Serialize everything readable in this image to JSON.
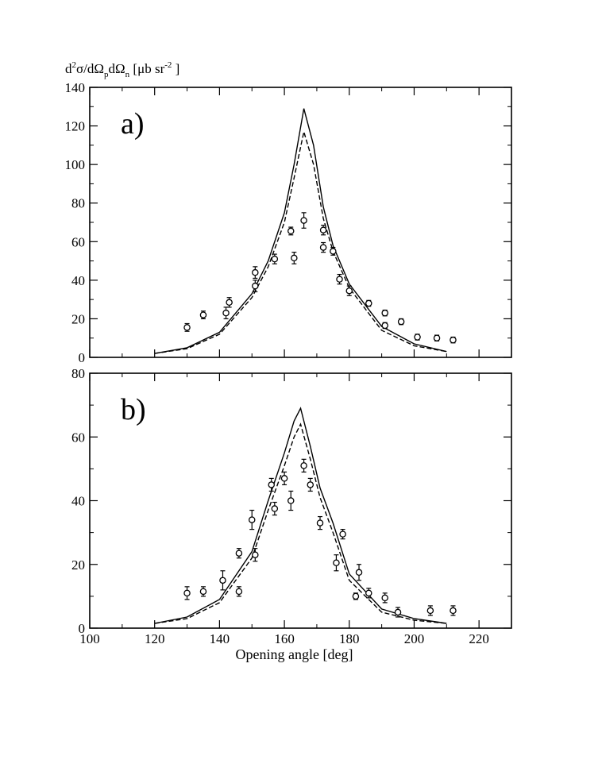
{
  "figure": {
    "ylabel_parts": [
      "d",
      "2",
      "σ/dΩ",
      "p",
      "dΩ",
      "n",
      " [μb sr",
      "-2",
      " ]"
    ]
  },
  "chart_data": [
    {
      "type": "line",
      "panel_label": "a)",
      "xlim": [
        100,
        230
      ],
      "ylim": [
        0,
        140
      ],
      "yticks": [
        0,
        20,
        40,
        60,
        80,
        100,
        120,
        140
      ],
      "xticks": [
        100,
        120,
        140,
        160,
        180,
        200,
        220
      ],
      "xtick_labels_shown": false,
      "series": [
        {
          "name": "solid",
          "style": "solid",
          "x": [
            120,
            130,
            140,
            150,
            155,
            160,
            163,
            166,
            169,
            172,
            175,
            180,
            190,
            200,
            210
          ],
          "y": [
            2,
            5,
            13,
            33,
            50,
            75,
            100,
            129,
            110,
            78,
            58,
            38,
            16,
            7,
            3
          ]
        },
        {
          "name": "dashed",
          "style": "dashed",
          "x": [
            120,
            130,
            140,
            150,
            155,
            160,
            163,
            166,
            169,
            172,
            175,
            180,
            190,
            200,
            210
          ],
          "y": [
            2,
            4.5,
            12,
            31,
            47,
            70,
            93,
            117,
            100,
            72,
            55,
            36,
            14,
            6,
            3
          ]
        },
        {
          "name": "data",
          "style": "markers",
          "x": [
            130,
            135,
            142,
            143,
            151,
            151,
            157,
            162,
            163,
            166,
            172,
            172,
            175,
            177,
            180,
            186,
            191,
            191,
            196,
            201,
            207,
            212
          ],
          "y": [
            15.5,
            22,
            23,
            28.5,
            44,
            37,
            51,
            65.5,
            51.5,
            71,
            57,
            66,
            55,
            40.5,
            34.5,
            28,
            23,
            16.5,
            18.5,
            10.5,
            10,
            9
          ],
          "err": [
            2,
            2,
            3,
            2.5,
            3,
            3,
            2.5,
            2,
            3,
            4,
            2.5,
            2.5,
            2,
            2.5,
            2.5,
            1.5,
            1.5,
            1.5,
            1.5,
            1.5,
            1.5,
            1.5
          ]
        }
      ]
    },
    {
      "type": "line",
      "panel_label": "b)",
      "xlim": [
        100,
        230
      ],
      "ylim": [
        0,
        80
      ],
      "yticks": [
        0,
        20,
        40,
        60,
        80
      ],
      "xticks": [
        100,
        120,
        140,
        160,
        180,
        200,
        220
      ],
      "xtick_labels_shown": true,
      "xlabel": "Opening angle [deg]",
      "series": [
        {
          "name": "solid",
          "style": "solid",
          "x": [
            120,
            130,
            140,
            150,
            155,
            160,
            163,
            165,
            168,
            171,
            175,
            180,
            190,
            200,
            210
          ],
          "y": [
            1.5,
            3.5,
            9,
            24,
            40,
            55,
            65,
            69,
            57,
            44,
            33,
            17,
            6,
            3,
            1.5
          ]
        },
        {
          "name": "dashed",
          "style": "dashed",
          "x": [
            120,
            130,
            140,
            150,
            155,
            160,
            163,
            165,
            168,
            171,
            175,
            180,
            190,
            200,
            210
          ],
          "y": [
            1.5,
            3,
            8,
            22,
            37,
            51,
            60,
            64,
            53,
            41,
            30,
            15,
            5,
            2.5,
            1.5
          ]
        },
        {
          "name": "data",
          "style": "markers",
          "x": [
            130,
            135,
            141,
            146,
            146,
            150,
            151,
            156,
            157,
            160,
            162,
            166,
            168,
            171,
            176,
            178,
            182,
            183,
            186,
            191,
            195,
            205,
            212
          ],
          "y": [
            11,
            11.5,
            15,
            23.5,
            11.5,
            34,
            23,
            45,
            37.5,
            47,
            40,
            51,
            45,
            33,
            20.5,
            29.5,
            10,
            17.5,
            11,
            9.5,
            5,
            5.5,
            5.5
          ],
          "err": [
            2,
            1.5,
            3,
            1.5,
            1.5,
            3,
            2,
            2,
            2,
            2,
            3,
            2,
            2,
            2,
            2.5,
            1.5,
            1,
            2.5,
            1.5,
            1.5,
            1.5,
            1.5,
            1.5
          ]
        }
      ]
    }
  ]
}
